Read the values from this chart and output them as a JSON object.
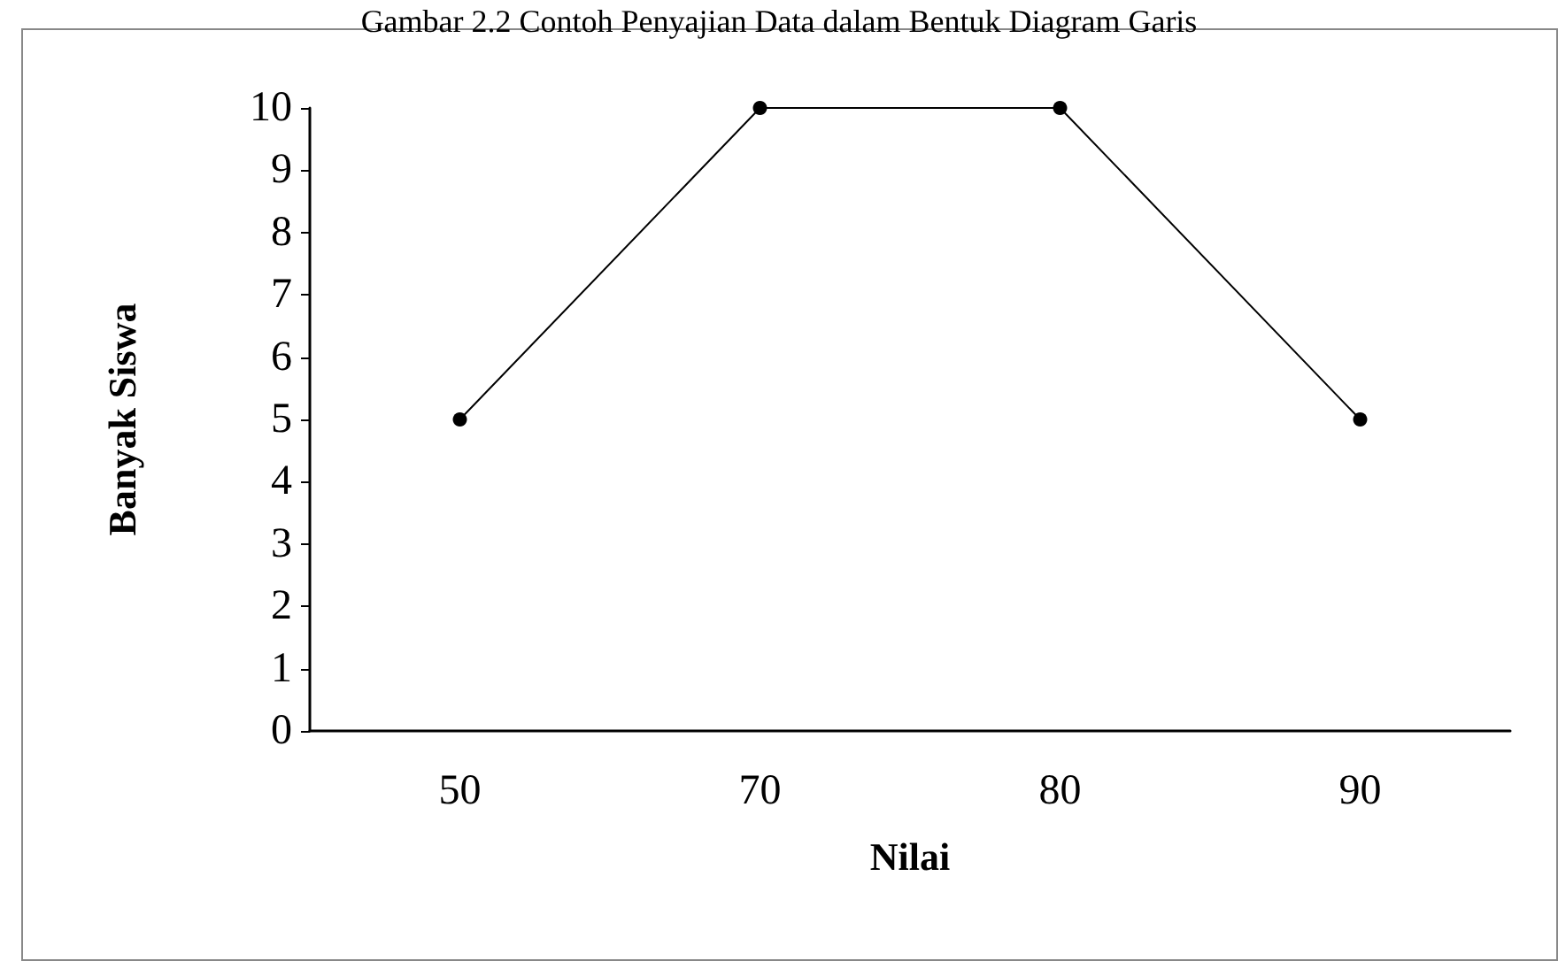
{
  "chart_data": {
    "type": "line",
    "title": "Gambar 2.2 Contoh Penyajian Data dalam Bentuk Diagram Garis",
    "xlabel": "Nilai",
    "ylabel": "Banyak Siswa",
    "categories": [
      "50",
      "70",
      "80",
      "90"
    ],
    "series": [
      {
        "color": "#000000",
        "values": [
          5,
          10,
          10,
          5
        ]
      }
    ],
    "ylim": [
      0,
      10
    ],
    "yticks": [
      0,
      1,
      2,
      3,
      4,
      5,
      6,
      7,
      8,
      9,
      10
    ],
    "grid": false,
    "marker": "circle",
    "line_style": "solid"
  }
}
